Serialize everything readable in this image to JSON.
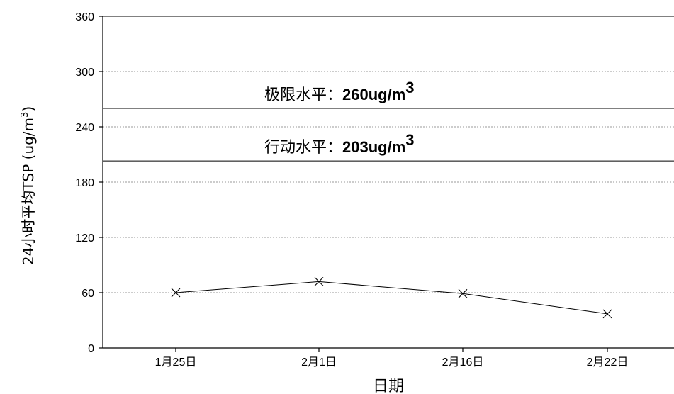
{
  "chart_data": {
    "type": "line",
    "categories": [
      "1月25日",
      "2月1日",
      "2月16日",
      "2月22日"
    ],
    "values": [
      60,
      72,
      59,
      37
    ],
    "xlabel": "日期",
    "ylabel_main": "24小时平均TSP (ug/m",
    "ylabel_sup": "3",
    "ylabel_close": ")",
    "ylim": [
      0,
      360
    ],
    "yticks": [
      0,
      60,
      120,
      180,
      240,
      300,
      360
    ],
    "grid": "horizontal-dashed",
    "marker": "x",
    "reference_lines": [
      {
        "value": 260,
        "label_prefix": "极限水平：",
        "label_value": "260ug/m",
        "label_sup": "3"
      },
      {
        "value": 203,
        "label_prefix": "行动水平：",
        "label_value": "203ug/m",
        "label_sup": "3"
      }
    ]
  }
}
